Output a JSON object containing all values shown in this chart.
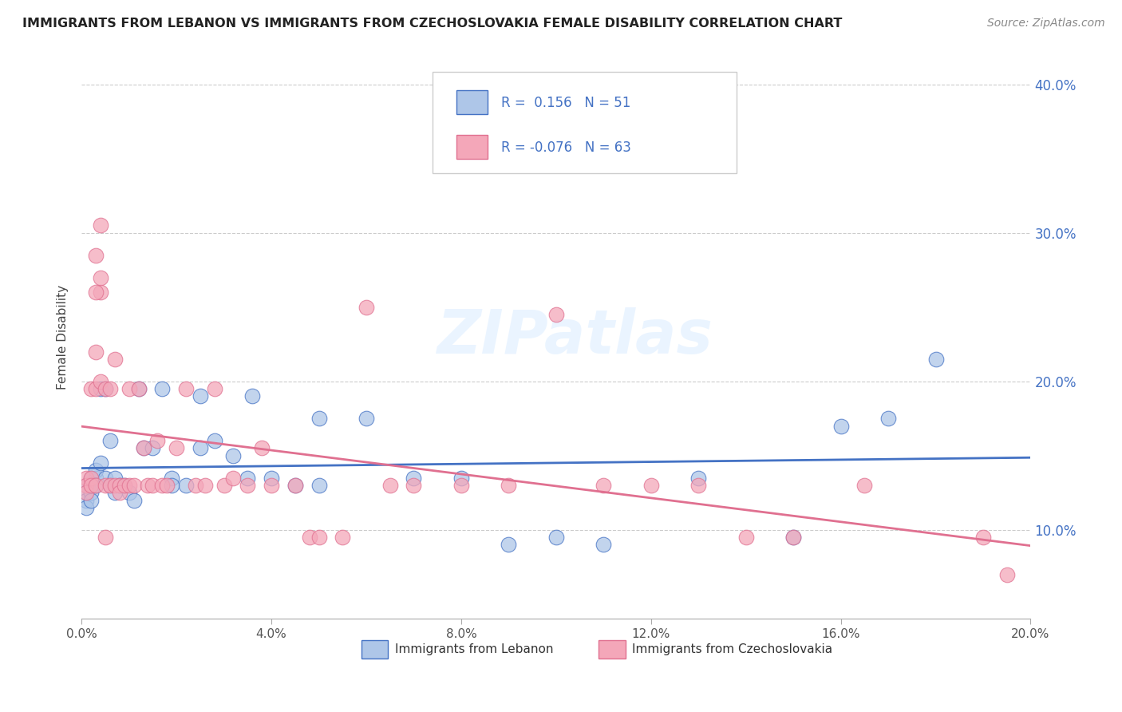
{
  "title": "IMMIGRANTS FROM LEBANON VS IMMIGRANTS FROM CZECHOSLOVAKIA FEMALE DISABILITY CORRELATION CHART",
  "source": "Source: ZipAtlas.com",
  "ylabel": "Female Disability",
  "xlim": [
    0.0,
    0.2
  ],
  "ylim": [
    0.04,
    0.42
  ],
  "xtick_vals": [
    0.0,
    0.04,
    0.08,
    0.12,
    0.16,
    0.2
  ],
  "ytick_vals": [
    0.1,
    0.2,
    0.3,
    0.4
  ],
  "lebanon_R": 0.156,
  "lebanon_N": 51,
  "czech_R": -0.076,
  "czech_N": 63,
  "lebanon_color": "#aec6e8",
  "czech_color": "#f4a7b9",
  "lebanon_line_color": "#4472c4",
  "czech_line_color": "#e07090",
  "background_color": "#ffffff",
  "watermark": "ZIPatlas",
  "legend_label_lebanon": "Immigrants from Lebanon",
  "legend_label_czech": "Immigrants from Czechoslovakia",
  "lebanon_x": [
    0.001,
    0.001,
    0.001,
    0.001,
    0.002,
    0.002,
    0.002,
    0.002,
    0.003,
    0.003,
    0.003,
    0.004,
    0.004,
    0.005,
    0.005,
    0.006,
    0.006,
    0.007,
    0.007,
    0.008,
    0.009,
    0.01,
    0.011,
    0.012,
    0.013,
    0.015,
    0.017,
    0.019,
    0.022,
    0.025,
    0.028,
    0.032,
    0.036,
    0.04,
    0.045,
    0.05,
    0.06,
    0.07,
    0.08,
    0.09,
    0.1,
    0.11,
    0.13,
    0.15,
    0.16,
    0.17,
    0.18,
    0.019,
    0.025,
    0.035,
    0.05
  ],
  "lebanon_y": [
    0.13,
    0.125,
    0.12,
    0.115,
    0.135,
    0.13,
    0.125,
    0.12,
    0.135,
    0.13,
    0.14,
    0.195,
    0.145,
    0.195,
    0.135,
    0.13,
    0.16,
    0.135,
    0.125,
    0.13,
    0.13,
    0.125,
    0.12,
    0.195,
    0.155,
    0.155,
    0.195,
    0.135,
    0.13,
    0.19,
    0.16,
    0.15,
    0.19,
    0.135,
    0.13,
    0.175,
    0.175,
    0.135,
    0.135,
    0.09,
    0.095,
    0.09,
    0.135,
    0.095,
    0.17,
    0.175,
    0.215,
    0.13,
    0.155,
    0.135,
    0.13
  ],
  "czech_x": [
    0.001,
    0.001,
    0.001,
    0.002,
    0.002,
    0.002,
    0.003,
    0.003,
    0.003,
    0.004,
    0.004,
    0.005,
    0.005,
    0.006,
    0.006,
    0.007,
    0.007,
    0.008,
    0.008,
    0.009,
    0.01,
    0.01,
    0.011,
    0.012,
    0.013,
    0.014,
    0.015,
    0.016,
    0.017,
    0.018,
    0.02,
    0.022,
    0.024,
    0.026,
    0.028,
    0.03,
    0.032,
    0.035,
    0.038,
    0.04,
    0.045,
    0.048,
    0.05,
    0.055,
    0.06,
    0.065,
    0.07,
    0.08,
    0.09,
    0.1,
    0.11,
    0.12,
    0.13,
    0.14,
    0.15,
    0.165,
    0.19,
    0.195,
    0.003,
    0.003,
    0.004,
    0.004,
    0.005
  ],
  "czech_y": [
    0.135,
    0.13,
    0.125,
    0.195,
    0.135,
    0.13,
    0.285,
    0.195,
    0.13,
    0.26,
    0.2,
    0.195,
    0.13,
    0.13,
    0.195,
    0.13,
    0.215,
    0.13,
    0.125,
    0.13,
    0.195,
    0.13,
    0.13,
    0.195,
    0.155,
    0.13,
    0.13,
    0.16,
    0.13,
    0.13,
    0.155,
    0.195,
    0.13,
    0.13,
    0.195,
    0.13,
    0.135,
    0.13,
    0.155,
    0.13,
    0.13,
    0.095,
    0.095,
    0.095,
    0.25,
    0.13,
    0.13,
    0.13,
    0.13,
    0.245,
    0.13,
    0.13,
    0.13,
    0.095,
    0.095,
    0.13,
    0.095,
    0.07,
    0.22,
    0.26,
    0.27,
    0.305,
    0.095
  ]
}
